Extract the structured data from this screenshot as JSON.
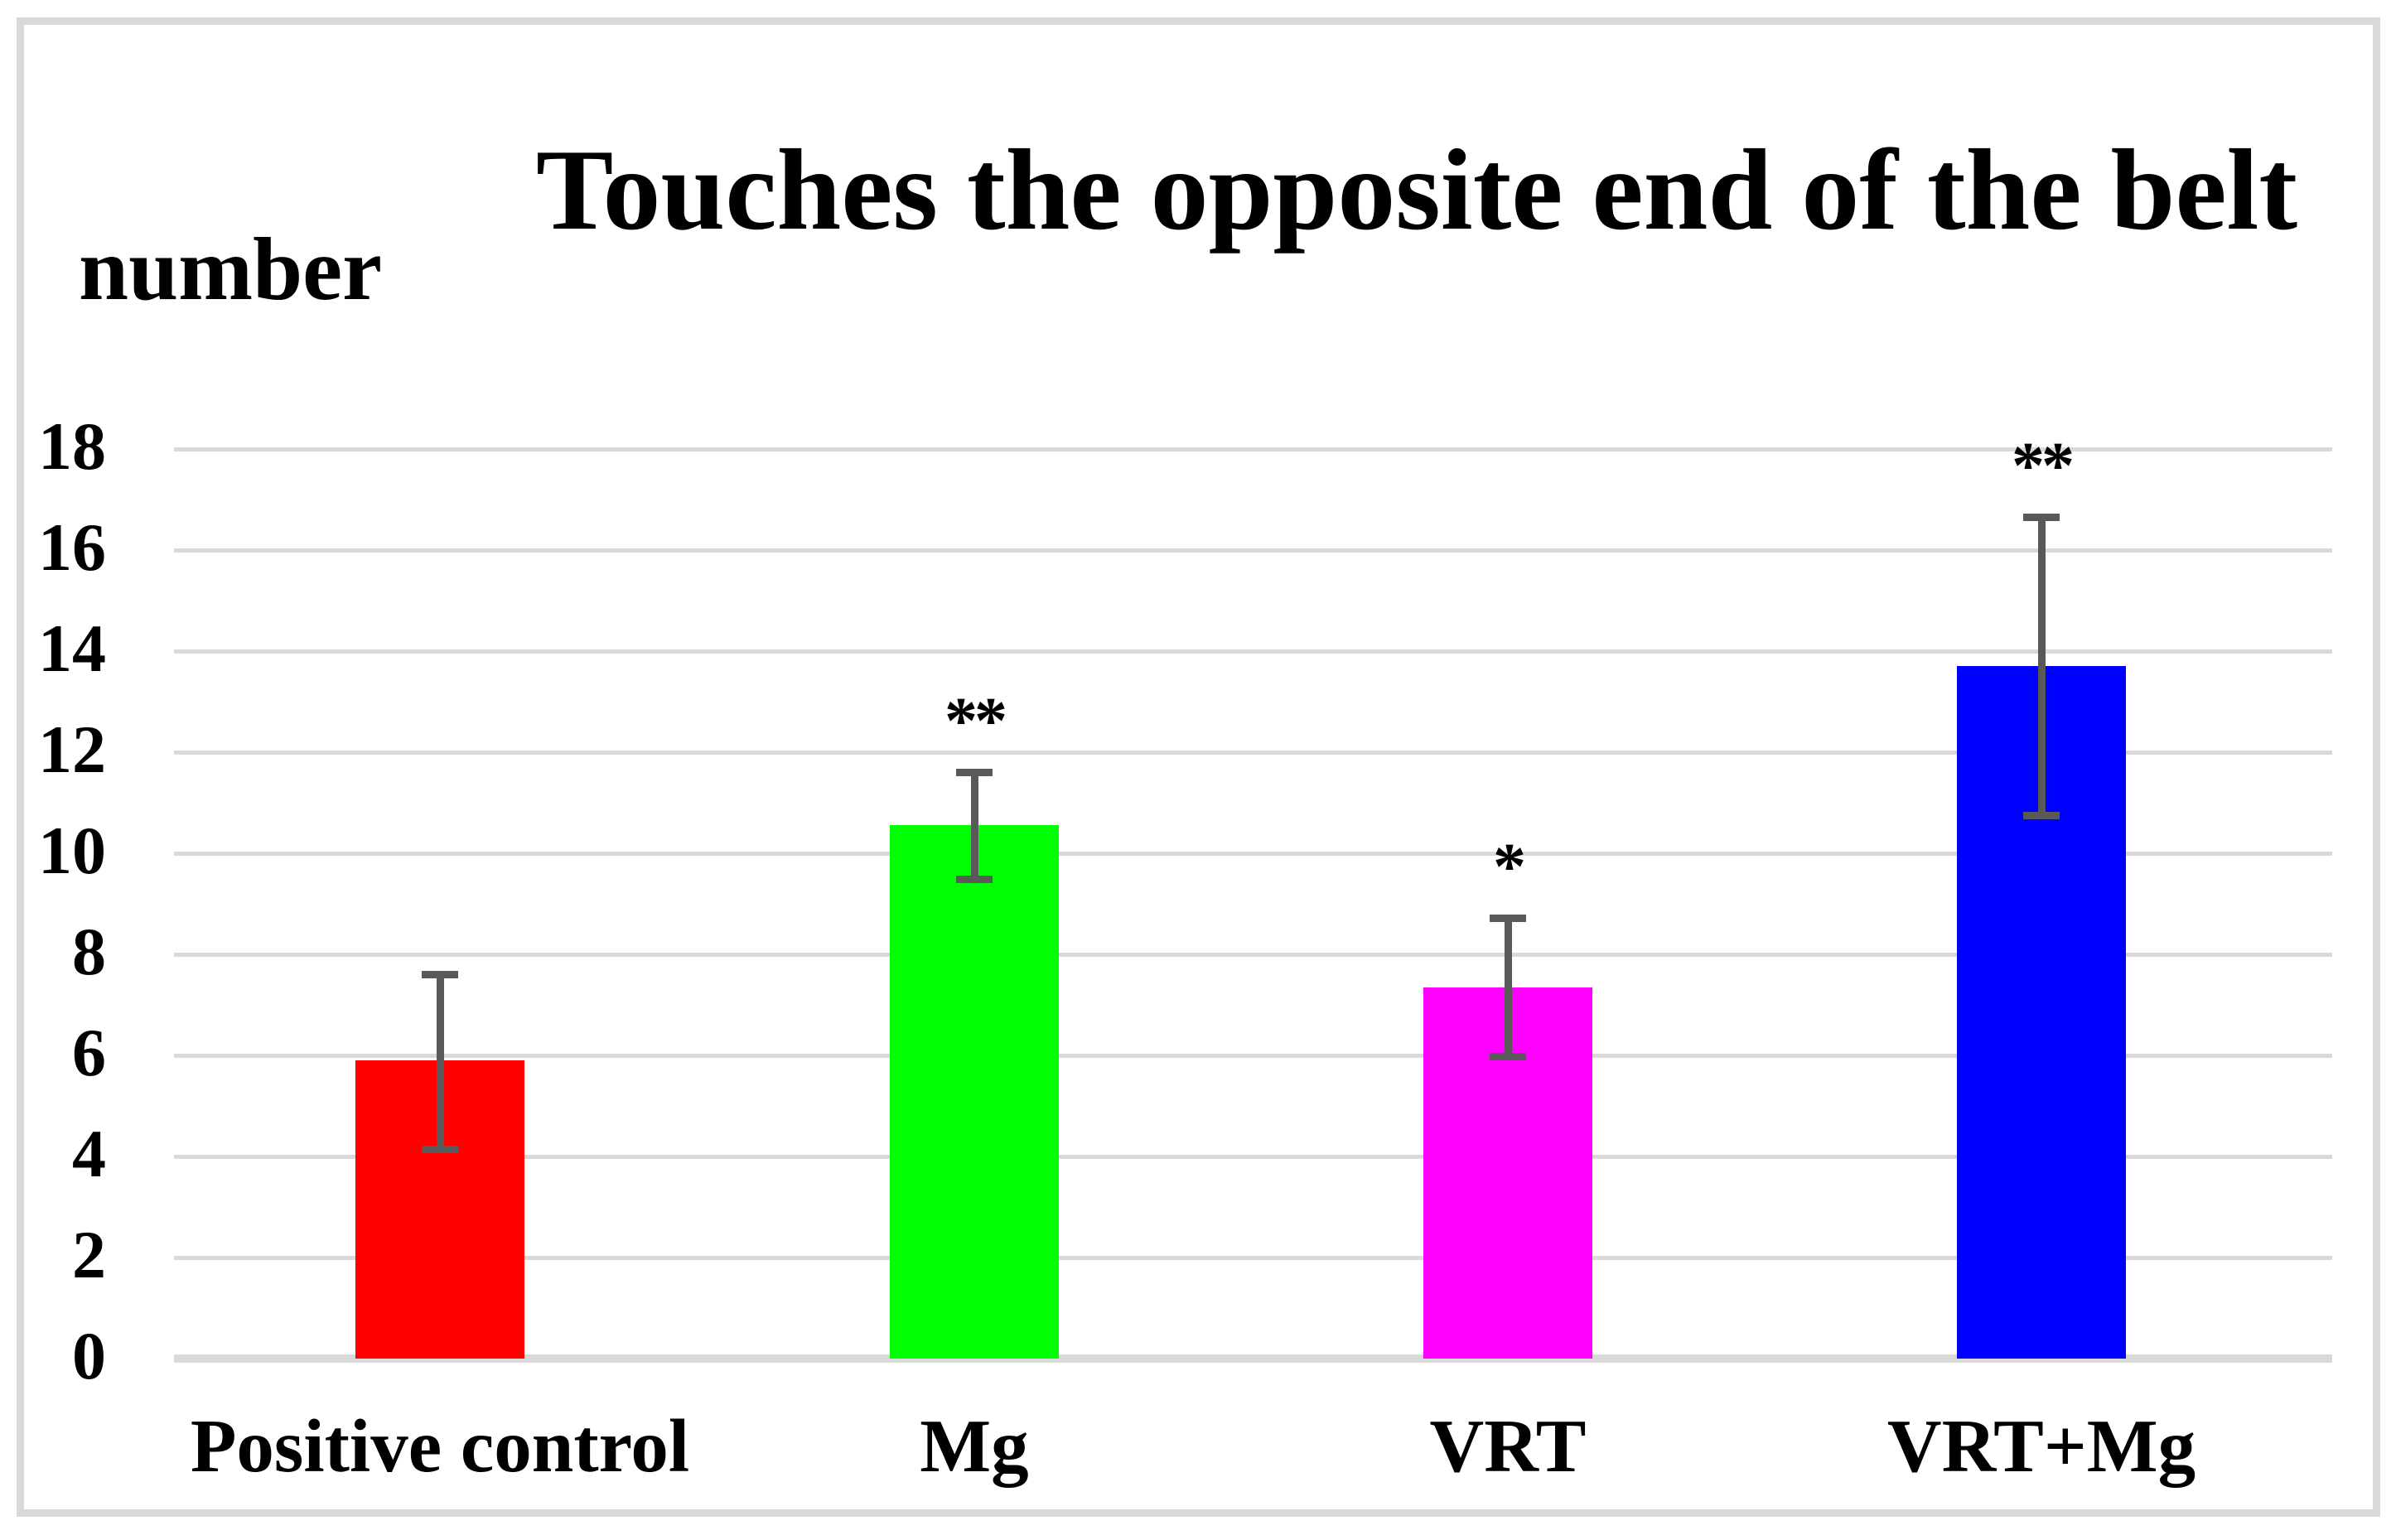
{
  "chart_data": {
    "type": "bar",
    "title": "Touches the opposite end of the belt",
    "ylabel": "number",
    "xlabel": "",
    "categories": [
      "Positive control",
      "Mg",
      "VRT",
      "VRT+Mg"
    ],
    "values": [
      5.9,
      10.55,
      7.35,
      13.7
    ],
    "errors_plus": [
      1.7,
      1.05,
      1.37,
      2.95
    ],
    "errors_minus": [
      1.75,
      1.05,
      1.37,
      2.95
    ],
    "significance": [
      "",
      "**",
      "*",
      "**"
    ],
    "bar_colors": [
      "#ff0000",
      "#00ff00",
      "#ff00ff",
      "#0000ff"
    ],
    "ylim": [
      0,
      18
    ],
    "yticks": [
      0,
      2,
      4,
      6,
      8,
      10,
      12,
      14,
      16,
      18
    ],
    "grid": true,
    "legend": "none",
    "gridline_color": "#d9d9d9",
    "axis_line_color": "#d9d9d9",
    "error_bar_color": "#595959",
    "frame_color": "#d9d9d9",
    "background_color": "#ffffff"
  }
}
